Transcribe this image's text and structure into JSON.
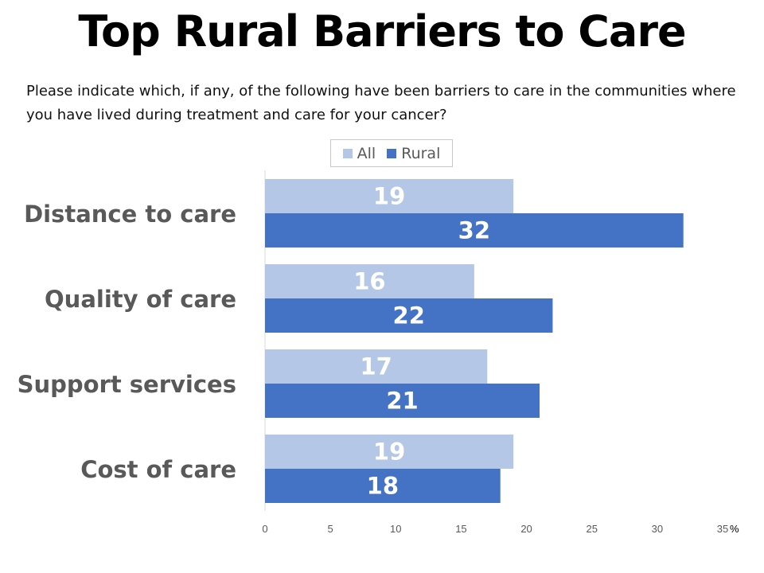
{
  "title": "Top Rural Barriers to Care",
  "subtitle": "Please indicate which, if any, of the following have been barriers to care in the communities where you have lived during treatment and care for your cancer?",
  "colors": {
    "all": "#b4c7e7",
    "rural": "#4472c4",
    "axis": "#d9d9d9",
    "label": "#595959"
  },
  "chart_data": {
    "type": "bar",
    "orientation": "horizontal",
    "categories": [
      "Distance to care",
      "Quality of care",
      "Support services",
      "Cost of care"
    ],
    "series": [
      {
        "name": "All",
        "values": [
          19,
          16,
          17,
          19
        ]
      },
      {
        "name": "Rural",
        "values": [
          32,
          22,
          21,
          18
        ]
      }
    ],
    "xlim": [
      0,
      35
    ],
    "ticks": [
      "0",
      "5",
      "10",
      "15",
      "20",
      "25",
      "30",
      "35"
    ],
    "unit": "%",
    "legend_position": "top",
    "grid": false,
    "data_labels": true
  }
}
